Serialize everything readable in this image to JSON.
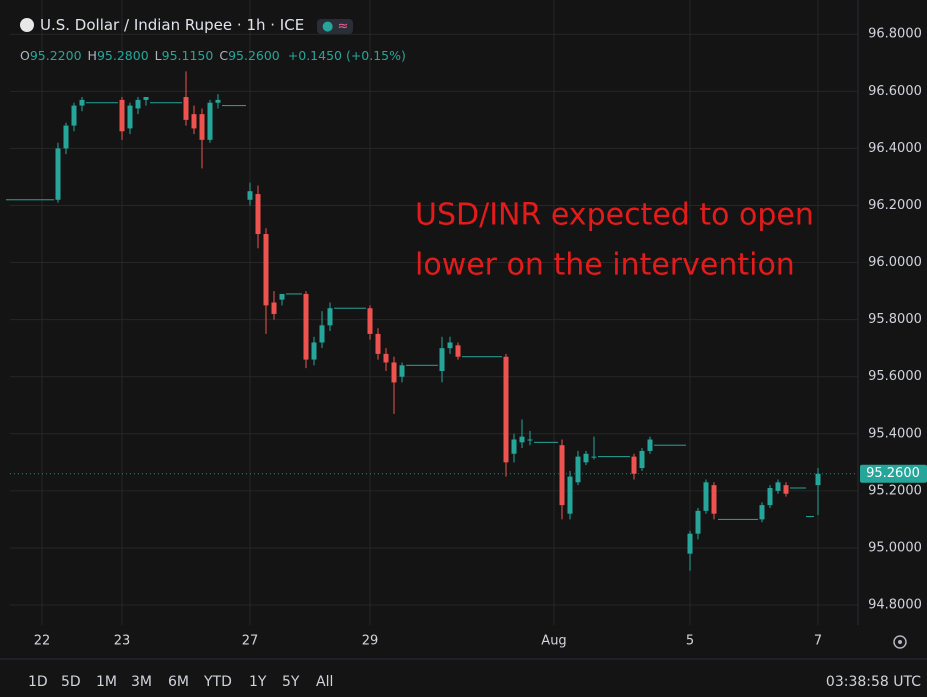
{
  "header": {
    "title": "U.S. Dollar / Indian Rupee · 1h · ICE",
    "ohlc": [
      {
        "label": "O",
        "value": "95.2200"
      },
      {
        "label": "H",
        "value": "95.2800"
      },
      {
        "label": "L",
        "value": "95.1150"
      },
      {
        "label": "C",
        "value": "95.2600"
      }
    ],
    "change": "+0.1450 (+0.15%)"
  },
  "chart_data": {
    "type": "candlestick",
    "annotation": [
      "USD/INR expected to open",
      "lower on the intervention"
    ],
    "x": [
      0,
      1,
      2,
      3,
      4,
      5,
      6,
      7,
      8,
      9,
      10,
      11,
      12,
      13,
      14,
      15,
      16,
      17,
      18,
      19,
      20,
      21,
      22,
      23,
      24,
      25,
      26,
      27,
      28,
      29,
      30,
      31,
      32,
      33,
      34,
      35,
      36,
      37,
      38,
      39,
      40,
      41,
      42,
      43,
      44,
      45,
      46,
      47,
      48,
      49,
      50,
      51,
      52,
      53,
      54,
      55,
      56,
      57,
      58,
      59,
      60,
      61,
      62,
      63,
      64,
      65,
      66,
      67,
      68,
      69,
      70,
      71,
      72,
      73,
      74,
      75,
      76,
      77,
      78,
      79,
      80,
      81,
      82,
      83,
      84,
      85,
      86,
      87,
      88,
      89,
      90,
      91,
      92,
      93,
      94,
      95,
      96,
      97,
      98,
      99,
      100,
      101
    ],
    "open": [
      96.22,
      96.22,
      96.22,
      96.22,
      96.22,
      96.22,
      96.22,
      96.4,
      96.48,
      96.55,
      96.56,
      96.56,
      96.56,
      96.56,
      96.57,
      96.47,
      96.54,
      96.57,
      96.56,
      96.56,
      96.56,
      96.56,
      96.58,
      96.52,
      96.52,
      96.43,
      96.56,
      96.55,
      96.55,
      96.55,
      96.22,
      96.24,
      96.1,
      95.86,
      95.87,
      95.89,
      95.89,
      95.89,
      95.66,
      95.72,
      95.78,
      95.84,
      95.84,
      95.84,
      95.84,
      95.84,
      95.75,
      95.68,
      95.65,
      95.6,
      95.64,
      95.64,
      95.64,
      95.64,
      95.62,
      95.7,
      95.71,
      95.67,
      95.67,
      95.67,
      95.67,
      95.67,
      95.67,
      95.33,
      95.37,
      95.38,
      95.37,
      95.37,
      95.37,
      95.36,
      95.12,
      95.23,
      95.3,
      95.32,
      95.32,
      95.32,
      95.32,
      95.32,
      95.32,
      95.28,
      95.34,
      95.36,
      95.36,
      95.36,
      95.36,
      94.98,
      95.05,
      95.13,
      95.22,
      95.1,
      95.1,
      95.1,
      95.1,
      95.1,
      95.1,
      95.15,
      95.2,
      95.22,
      95.21,
      95.21,
      95.11,
      95.22
    ],
    "high": [
      96.22,
      96.22,
      96.22,
      96.22,
      96.22,
      96.22,
      96.42,
      96.49,
      96.56,
      96.58,
      96.56,
      96.56,
      96.56,
      96.56,
      96.58,
      96.56,
      96.58,
      96.58,
      96.56,
      96.56,
      96.56,
      96.56,
      96.67,
      96.55,
      96.54,
      96.57,
      96.59,
      96.55,
      96.55,
      96.55,
      96.28,
      96.27,
      96.12,
      95.9,
      95.89,
      95.89,
      95.89,
      95.9,
      95.74,
      95.83,
      95.86,
      95.84,
      95.84,
      95.84,
      95.84,
      95.85,
      95.77,
      95.7,
      95.67,
      95.65,
      95.64,
      95.64,
      95.64,
      95.64,
      95.74,
      95.74,
      95.72,
      95.67,
      95.67,
      95.67,
      95.67,
      95.67,
      95.68,
      95.4,
      95.45,
      95.41,
      95.37,
      95.37,
      95.37,
      95.38,
      95.27,
      95.34,
      95.34,
      95.39,
      95.32,
      95.32,
      95.32,
      95.32,
      95.33,
      95.35,
      95.39,
      95.36,
      95.36,
      95.36,
      95.36,
      95.06,
      95.14,
      95.24,
      95.23,
      95.1,
      95.1,
      95.1,
      95.1,
      95.1,
      95.16,
      95.22,
      95.24,
      95.23,
      95.21,
      95.21,
      95.11,
      95.28
    ],
    "low": [
      96.22,
      96.22,
      96.22,
      96.22,
      96.22,
      96.22,
      96.21,
      96.38,
      96.46,
      96.53,
      96.56,
      96.56,
      96.56,
      96.56,
      96.43,
      96.45,
      96.52,
      96.55,
      96.56,
      96.56,
      96.56,
      96.56,
      96.48,
      96.45,
      96.33,
      96.42,
      96.54,
      96.55,
      96.55,
      96.55,
      96.2,
      96.05,
      95.75,
      95.8,
      95.85,
      95.89,
      95.89,
      95.63,
      95.64,
      95.7,
      95.76,
      95.84,
      95.84,
      95.84,
      95.84,
      95.73,
      95.66,
      95.62,
      95.47,
      95.58,
      95.64,
      95.64,
      95.64,
      95.64,
      95.58,
      95.68,
      95.66,
      95.67,
      95.67,
      95.67,
      95.67,
      95.67,
      95.25,
      95.3,
      95.35,
      95.36,
      95.37,
      95.37,
      95.37,
      95.1,
      95.1,
      95.22,
      95.29,
      95.31,
      95.32,
      95.32,
      95.32,
      95.32,
      95.24,
      95.27,
      95.33,
      95.36,
      95.36,
      95.36,
      95.36,
      94.92,
      95.03,
      95.12,
      95.1,
      95.1,
      95.1,
      95.1,
      95.1,
      95.1,
      95.09,
      95.14,
      95.19,
      95.18,
      95.21,
      95.21,
      95.11,
      95.115
    ],
    "close": [
      96.22,
      96.22,
      96.22,
      96.22,
      96.22,
      96.22,
      96.4,
      96.48,
      96.55,
      96.57,
      96.56,
      96.56,
      96.56,
      96.56,
      96.46,
      96.55,
      96.57,
      96.58,
      96.56,
      96.56,
      96.56,
      96.56,
      96.5,
      96.47,
      96.43,
      96.56,
      96.57,
      96.55,
      96.55,
      96.55,
      96.25,
      96.1,
      95.85,
      95.82,
      95.89,
      95.89,
      95.89,
      95.66,
      95.72,
      95.78,
      95.84,
      95.84,
      95.84,
      95.84,
      95.84,
      95.75,
      95.68,
      95.65,
      95.58,
      95.64,
      95.64,
      95.64,
      95.64,
      95.64,
      95.7,
      95.72,
      95.67,
      95.67,
      95.67,
      95.67,
      95.67,
      95.67,
      95.3,
      95.38,
      95.39,
      95.38,
      95.37,
      95.37,
      95.37,
      95.15,
      95.25,
      95.32,
      95.33,
      95.32,
      95.32,
      95.32,
      95.32,
      95.32,
      95.26,
      95.34,
      95.38,
      95.36,
      95.36,
      95.36,
      95.36,
      95.05,
      95.13,
      95.23,
      95.12,
      95.1,
      95.1,
      95.1,
      95.1,
      95.1,
      95.15,
      95.21,
      95.23,
      95.19,
      95.21,
      95.21,
      95.11,
      95.26
    ],
    "up_color": "#26a69a",
    "down_color": "#ef5350",
    "xlim": [
      0,
      106
    ],
    "xticks": [
      {
        "value": 4,
        "label": "22"
      },
      {
        "value": 14,
        "label": "23"
      },
      {
        "value": 30,
        "label": "27"
      },
      {
        "value": 45,
        "label": "29"
      },
      {
        "value": 68,
        "label": "Aug"
      },
      {
        "value": 85,
        "label": "5"
      },
      {
        "value": 101,
        "label": "7"
      }
    ],
    "ylim": [
      94.73,
      96.92
    ],
    "yticks": [
      {
        "value": 94.8,
        "label": "94.8000"
      },
      {
        "value": 95.0,
        "label": "95.0000"
      },
      {
        "value": 95.2,
        "label": "95.2000"
      },
      {
        "value": 95.4,
        "label": "95.4000"
      },
      {
        "value": 95.6,
        "label": "95.6000"
      },
      {
        "value": 95.8,
        "label": "95.8000"
      },
      {
        "value": 96.0,
        "label": "96.0000"
      },
      {
        "value": 96.2,
        "label": "96.2000"
      },
      {
        "value": 96.4,
        "label": "96.4000"
      },
      {
        "value": 96.6,
        "label": "96.6000"
      },
      {
        "value": 96.8,
        "label": "96.8000"
      }
    ],
    "last_price": {
      "value": 95.26,
      "label": "95.2600"
    },
    "grid": true
  },
  "toolbar": {
    "ranges": [
      "1D",
      "5D",
      "1M",
      "3M",
      "6M",
      "YTD",
      "1Y",
      "5Y",
      "All"
    ],
    "clock": "03:38:58 UTC"
  }
}
